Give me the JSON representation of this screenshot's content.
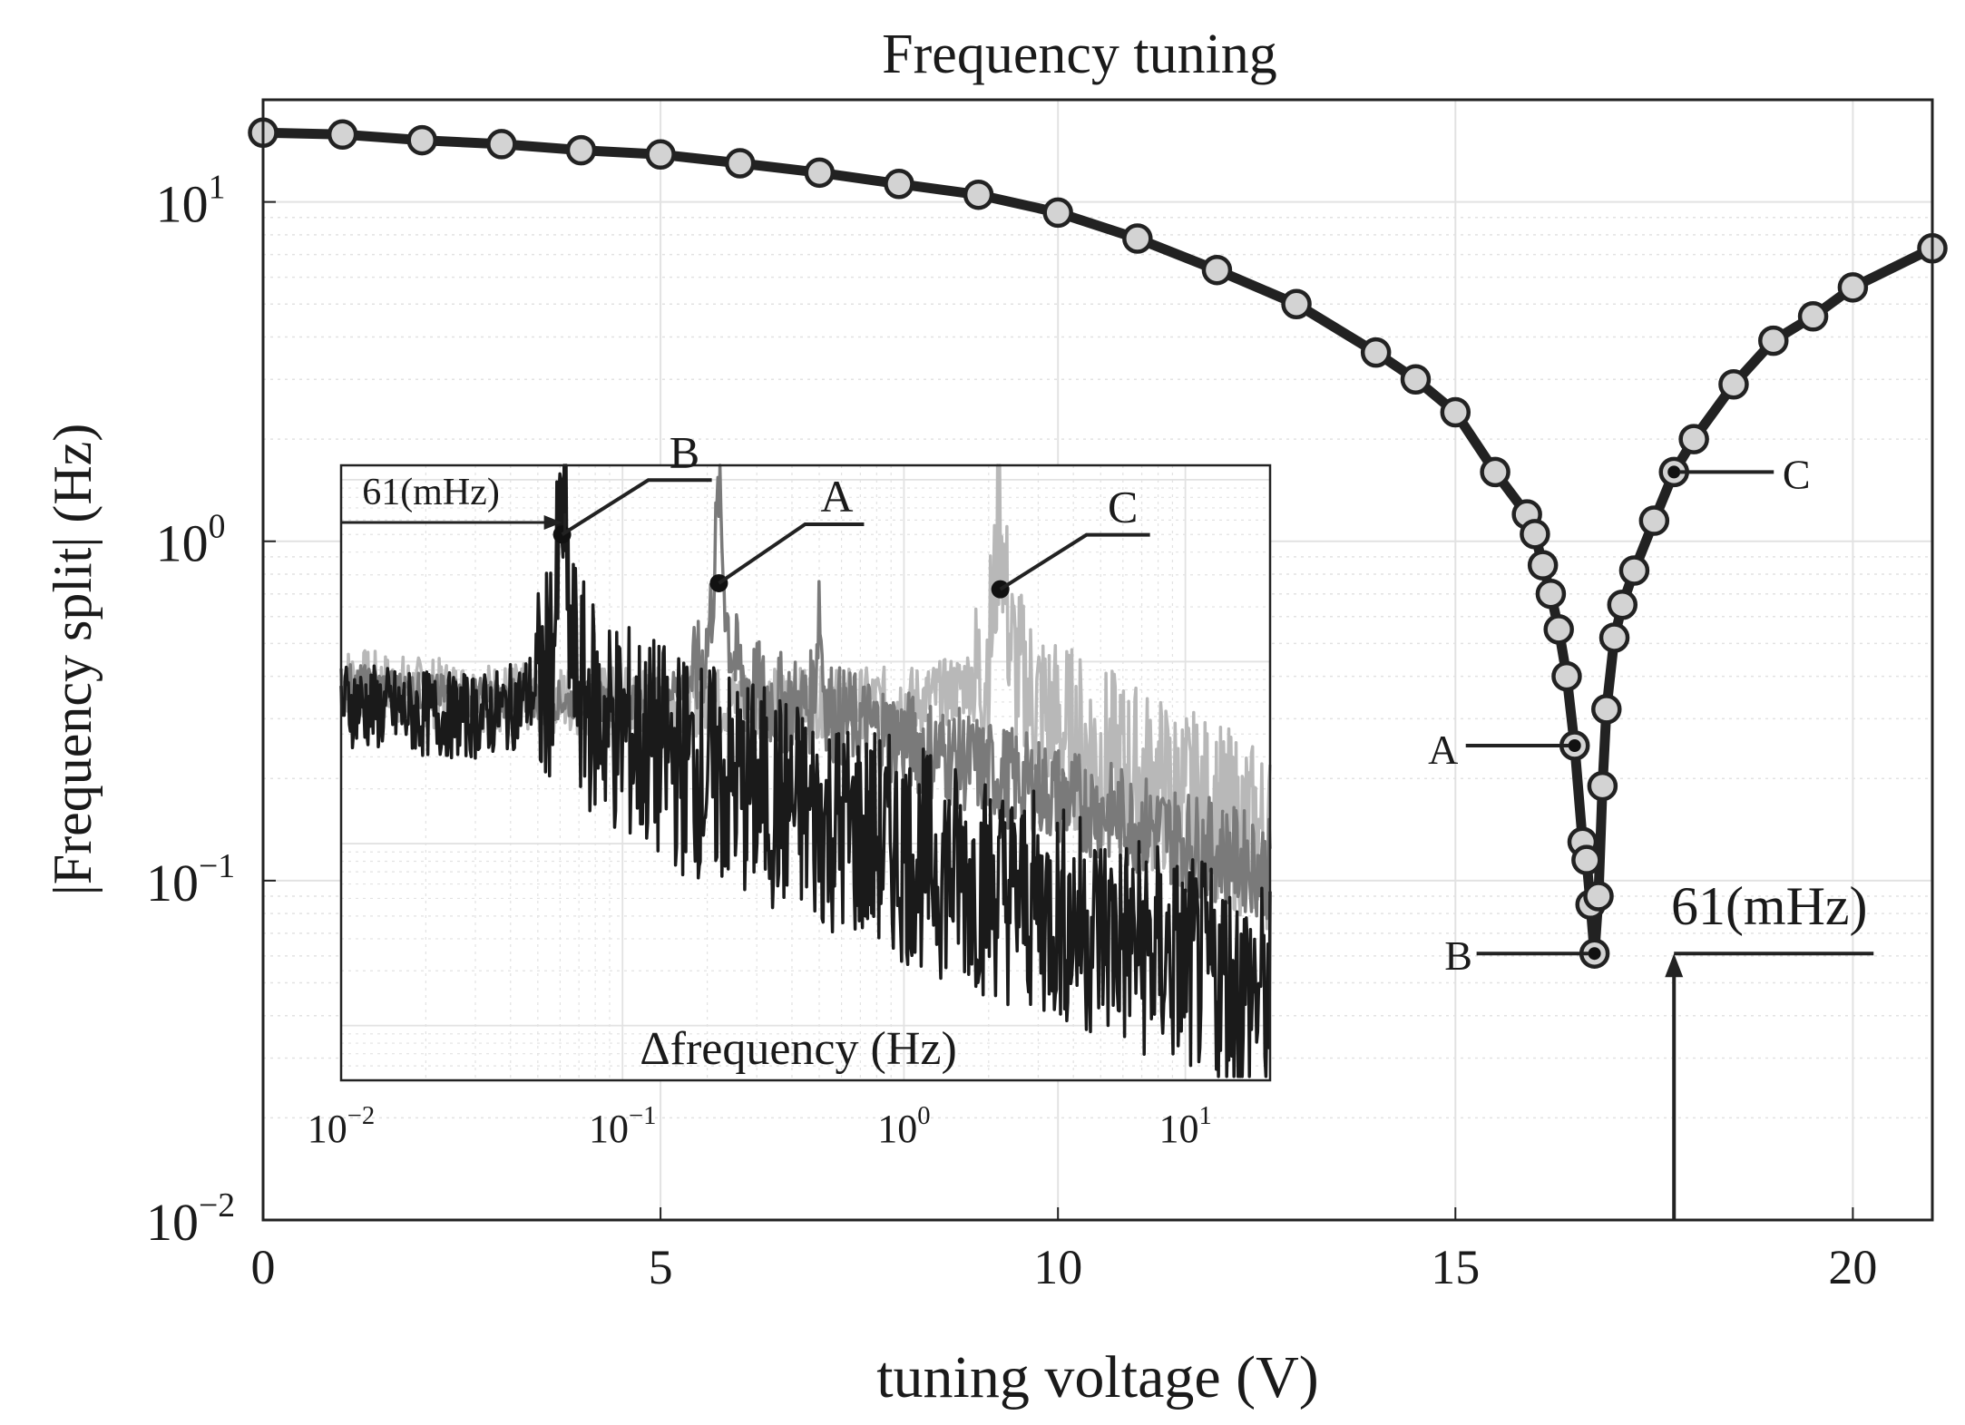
{
  "colors": {
    "main_line": "#222222",
    "marker_fill": "#d3d3d3",
    "grid": "#e2e2e2",
    "spec_B": "#1a1a1a",
    "spec_A": "#7a7a7a",
    "spec_C": "#b8b8b8"
  },
  "chart_data": [
    {
      "type": "line",
      "title": "Frequency tuning",
      "xlabel": "tuning voltage (V)",
      "ylabel": "|Frequency split| (Hz)",
      "xlim": [
        0,
        21
      ],
      "ylim": [
        0.01,
        20
      ],
      "yscale": "log",
      "grid": true,
      "x_ticks": [
        0,
        5,
        10,
        15,
        20
      ],
      "x_tick_labels": [
        "0",
        "5",
        "10",
        "15",
        "20"
      ],
      "y_ticks": [
        0.01,
        0.1,
        1,
        10
      ],
      "y_tick_labels": [
        {
          "base": "10",
          "exp": "−2"
        },
        {
          "base": "10",
          "exp": "−1"
        },
        {
          "base": "10",
          "exp": "0"
        },
        {
          "base": "10",
          "exp": "1"
        }
      ],
      "series": [
        {
          "name": "frequency split",
          "x": [
            0,
            1,
            2,
            3,
            4,
            5,
            6,
            7,
            8,
            9,
            10,
            11,
            12,
            13,
            14,
            14.5,
            15,
            15.5,
            15.9,
            16.0,
            16.1,
            16.2,
            16.3,
            16.4,
            16.5,
            16.6,
            16.65,
            16.7,
            16.75,
            16.8,
            16.85,
            16.9,
            17.0,
            17.1,
            17.25,
            17.5,
            17.75,
            18.0,
            18.5,
            19.0,
            19.5,
            20.0,
            21.0
          ],
          "y": [
            16,
            15.8,
            15.2,
            14.8,
            14.2,
            13.8,
            13,
            12.2,
            11.3,
            10.5,
            9.3,
            7.8,
            6.3,
            5.0,
            3.6,
            3.0,
            2.4,
            1.6,
            1.2,
            1.05,
            0.85,
            0.7,
            0.55,
            0.4,
            0.25,
            0.13,
            0.115,
            0.085,
            0.061,
            0.09,
            0.19,
            0.32,
            0.52,
            0.65,
            0.82,
            1.15,
            1.6,
            2.0,
            2.9,
            3.9,
            4.6,
            5.6,
            7.3
          ]
        }
      ],
      "annotations": [
        {
          "label": "A",
          "x": 16.5,
          "y": 0.25
        },
        {
          "label": "B",
          "x": 16.75,
          "y": 0.061
        },
        {
          "label": "C",
          "x": 17.75,
          "y": 1.6
        },
        {
          "label": "61(mHz)",
          "x": 17.75,
          "y": 0.061,
          "note": "arrow pointing to minimum split level"
        }
      ]
    },
    {
      "type": "line",
      "inset": true,
      "xlabel": "Δfrequency (Hz)",
      "xscale": "log",
      "yscale": "log",
      "xlim": [
        0.01,
        20
      ],
      "ylim": [
        0.0005,
        1.2
      ],
      "x_tick_labels": [
        {
          "base": "10",
          "exp": "−2"
        },
        {
          "base": "10",
          "exp": "−1"
        },
        {
          "base": "10",
          "exp": "0"
        },
        {
          "base": "10",
          "exp": "1"
        }
      ],
      "series": [
        {
          "name": "C",
          "peak_x": 2.2,
          "peak_y": 0.9,
          "marker": "C"
        },
        {
          "name": "A",
          "peak_x": 0.22,
          "peak_y": 0.9,
          "second_peak_x": 0.5,
          "marker": "A"
        },
        {
          "name": "B",
          "peak_x": 0.061,
          "peak_y": 0.95,
          "marker": "B"
        }
      ],
      "annotations": [
        {
          "label": "61(mHz)",
          "x": 0.061
        },
        {
          "label": "B",
          "x": 0.061
        },
        {
          "label": "A",
          "x": 0.22
        },
        {
          "label": "C",
          "x": 2.2
        }
      ]
    }
  ]
}
